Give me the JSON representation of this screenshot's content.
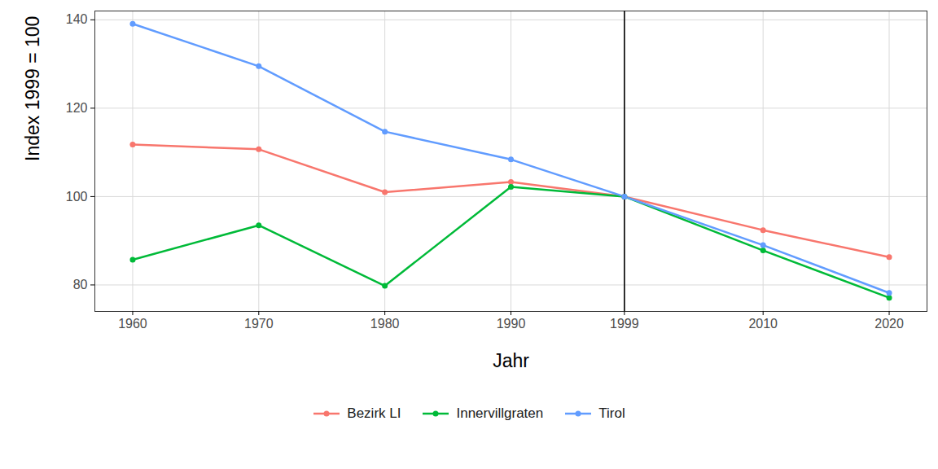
{
  "chart_data": {
    "type": "line",
    "x_label": "Jahr",
    "y_label": "Index 1999 = 100",
    "x": [
      1960,
      1970,
      1980,
      1990,
      1999,
      2010,
      2020
    ],
    "series": [
      {
        "name": "Bezirk LI",
        "color": "#F8766D",
        "values": [
          111.8,
          110.7,
          101.0,
          103.3,
          100,
          92.4,
          86.3
        ]
      },
      {
        "name": "Innervillgraten",
        "color": "#00BA38",
        "values": [
          85.7,
          93.5,
          79.8,
          102.2,
          100,
          87.8,
          77.1
        ]
      },
      {
        "name": "Tirol",
        "color": "#619CFF",
        "values": [
          139.1,
          129.5,
          114.7,
          108.4,
          100,
          89.0,
          78.2
        ]
      }
    ],
    "xlim": [
      1957,
      2023
    ],
    "xticks": [
      1960,
      1970,
      1980,
      1990,
      1999,
      2010,
      2020
    ],
    "ylim": [
      74,
      142
    ],
    "yticks": [
      80,
      100,
      120,
      140
    ],
    "vline": 1999,
    "grid": true,
    "legend": "bottom",
    "marker": "circle"
  }
}
